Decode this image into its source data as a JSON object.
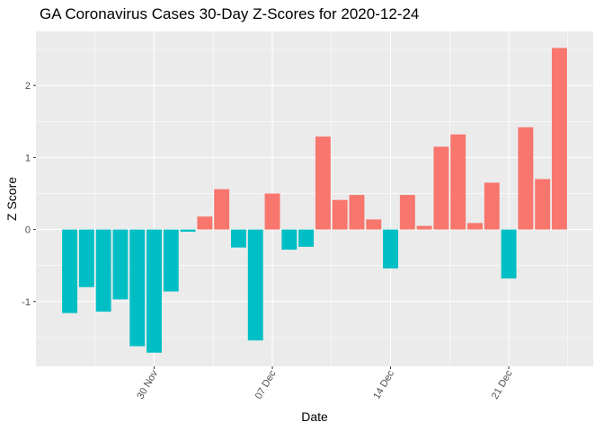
{
  "chart_data": {
    "type": "bar",
    "title": "GA Coronavirus Cases 30-Day Z-Scores for 2020-12-24",
    "xlabel": "Date",
    "ylabel": "Z Score",
    "x": [
      "2020-11-25",
      "2020-11-26",
      "2020-11-27",
      "2020-11-28",
      "2020-11-29",
      "2020-11-30",
      "2020-12-01",
      "2020-12-02",
      "2020-12-03",
      "2020-12-04",
      "2020-12-05",
      "2020-12-06",
      "2020-12-07",
      "2020-12-08",
      "2020-12-09",
      "2020-12-10",
      "2020-12-11",
      "2020-12-12",
      "2020-12-13",
      "2020-12-14",
      "2020-12-15",
      "2020-12-16",
      "2020-12-17",
      "2020-12-18",
      "2020-12-19",
      "2020-12-20",
      "2020-12-21",
      "2020-12-22",
      "2020-12-23",
      "2020-12-24"
    ],
    "values": [
      -1.16,
      -0.8,
      -1.14,
      -0.97,
      -1.62,
      -1.71,
      -0.86,
      -0.03,
      0.18,
      0.56,
      -0.25,
      -1.54,
      0.5,
      -0.28,
      -0.24,
      1.29,
      0.41,
      0.48,
      0.14,
      -0.54,
      0.48,
      0.05,
      1.15,
      1.32,
      0.09,
      0.65,
      -0.68,
      1.42,
      0.7,
      2.52
    ],
    "x_ticks": [
      {
        "date": "2020-11-30",
        "label": "30 Nov"
      },
      {
        "date": "2020-12-07",
        "label": "07 Dec"
      },
      {
        "date": "2020-12-14",
        "label": "14 Dec"
      },
      {
        "date": "2020-12-21",
        "label": "21 Dec"
      }
    ],
    "y_ticks": [
      -1,
      0,
      1,
      2
    ],
    "ylim": [
      -1.9,
      2.75
    ],
    "xlim": [
      "2020-11-23",
      "2020-12-26"
    ],
    "colors": {
      "positive": "#F8766D",
      "negative": "#00BFC4",
      "panel": "#EBEBEB",
      "grid": "#FFFFFF"
    },
    "grid": true,
    "legend": "none"
  }
}
